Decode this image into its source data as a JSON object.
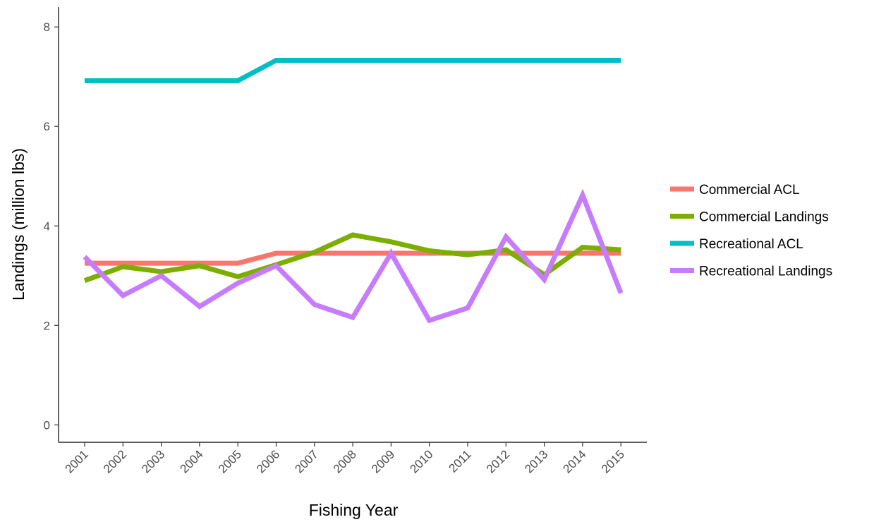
{
  "chart_data": {
    "type": "line",
    "xlabel": "Fishing Year",
    "ylabel": "Landings (million lbs)",
    "categories": [
      "2001",
      "2002",
      "2003",
      "2004",
      "2005",
      "2006",
      "2007",
      "2008",
      "2009",
      "2010",
      "2011",
      "2012",
      "2013",
      "2014",
      "2015"
    ],
    "yticks": [
      "0",
      "2",
      "4",
      "6",
      "8"
    ],
    "ylim": [
      -0.35,
      8.4
    ],
    "grid": false,
    "legend_position": "right",
    "series": [
      {
        "name": "Commercial ACL",
        "color": "#F8766D",
        "values": [
          3.25,
          3.25,
          3.25,
          3.25,
          3.25,
          3.45,
          3.45,
          3.45,
          3.45,
          3.45,
          3.45,
          3.45,
          3.45,
          3.45,
          3.45
        ]
      },
      {
        "name": "Commercial Landings",
        "color": "#7CAE00",
        "values": [
          2.9,
          3.18,
          3.08,
          3.2,
          2.98,
          3.22,
          3.47,
          3.82,
          3.68,
          3.5,
          3.42,
          3.52,
          3.02,
          3.57,
          3.52
        ]
      },
      {
        "name": "Recreational ACL",
        "color": "#00BFC4",
        "values": [
          6.92,
          6.92,
          6.92,
          6.92,
          6.92,
          7.33,
          7.33,
          7.33,
          7.33,
          7.33,
          7.33,
          7.33,
          7.33,
          7.33,
          7.33
        ]
      },
      {
        "name": "Recreational Landings",
        "color": "#C77CFF",
        "values": [
          3.38,
          2.6,
          3.0,
          2.38,
          2.85,
          3.2,
          2.42,
          2.16,
          3.45,
          2.1,
          2.35,
          3.78,
          2.92,
          4.62,
          2.65
        ]
      }
    ]
  }
}
